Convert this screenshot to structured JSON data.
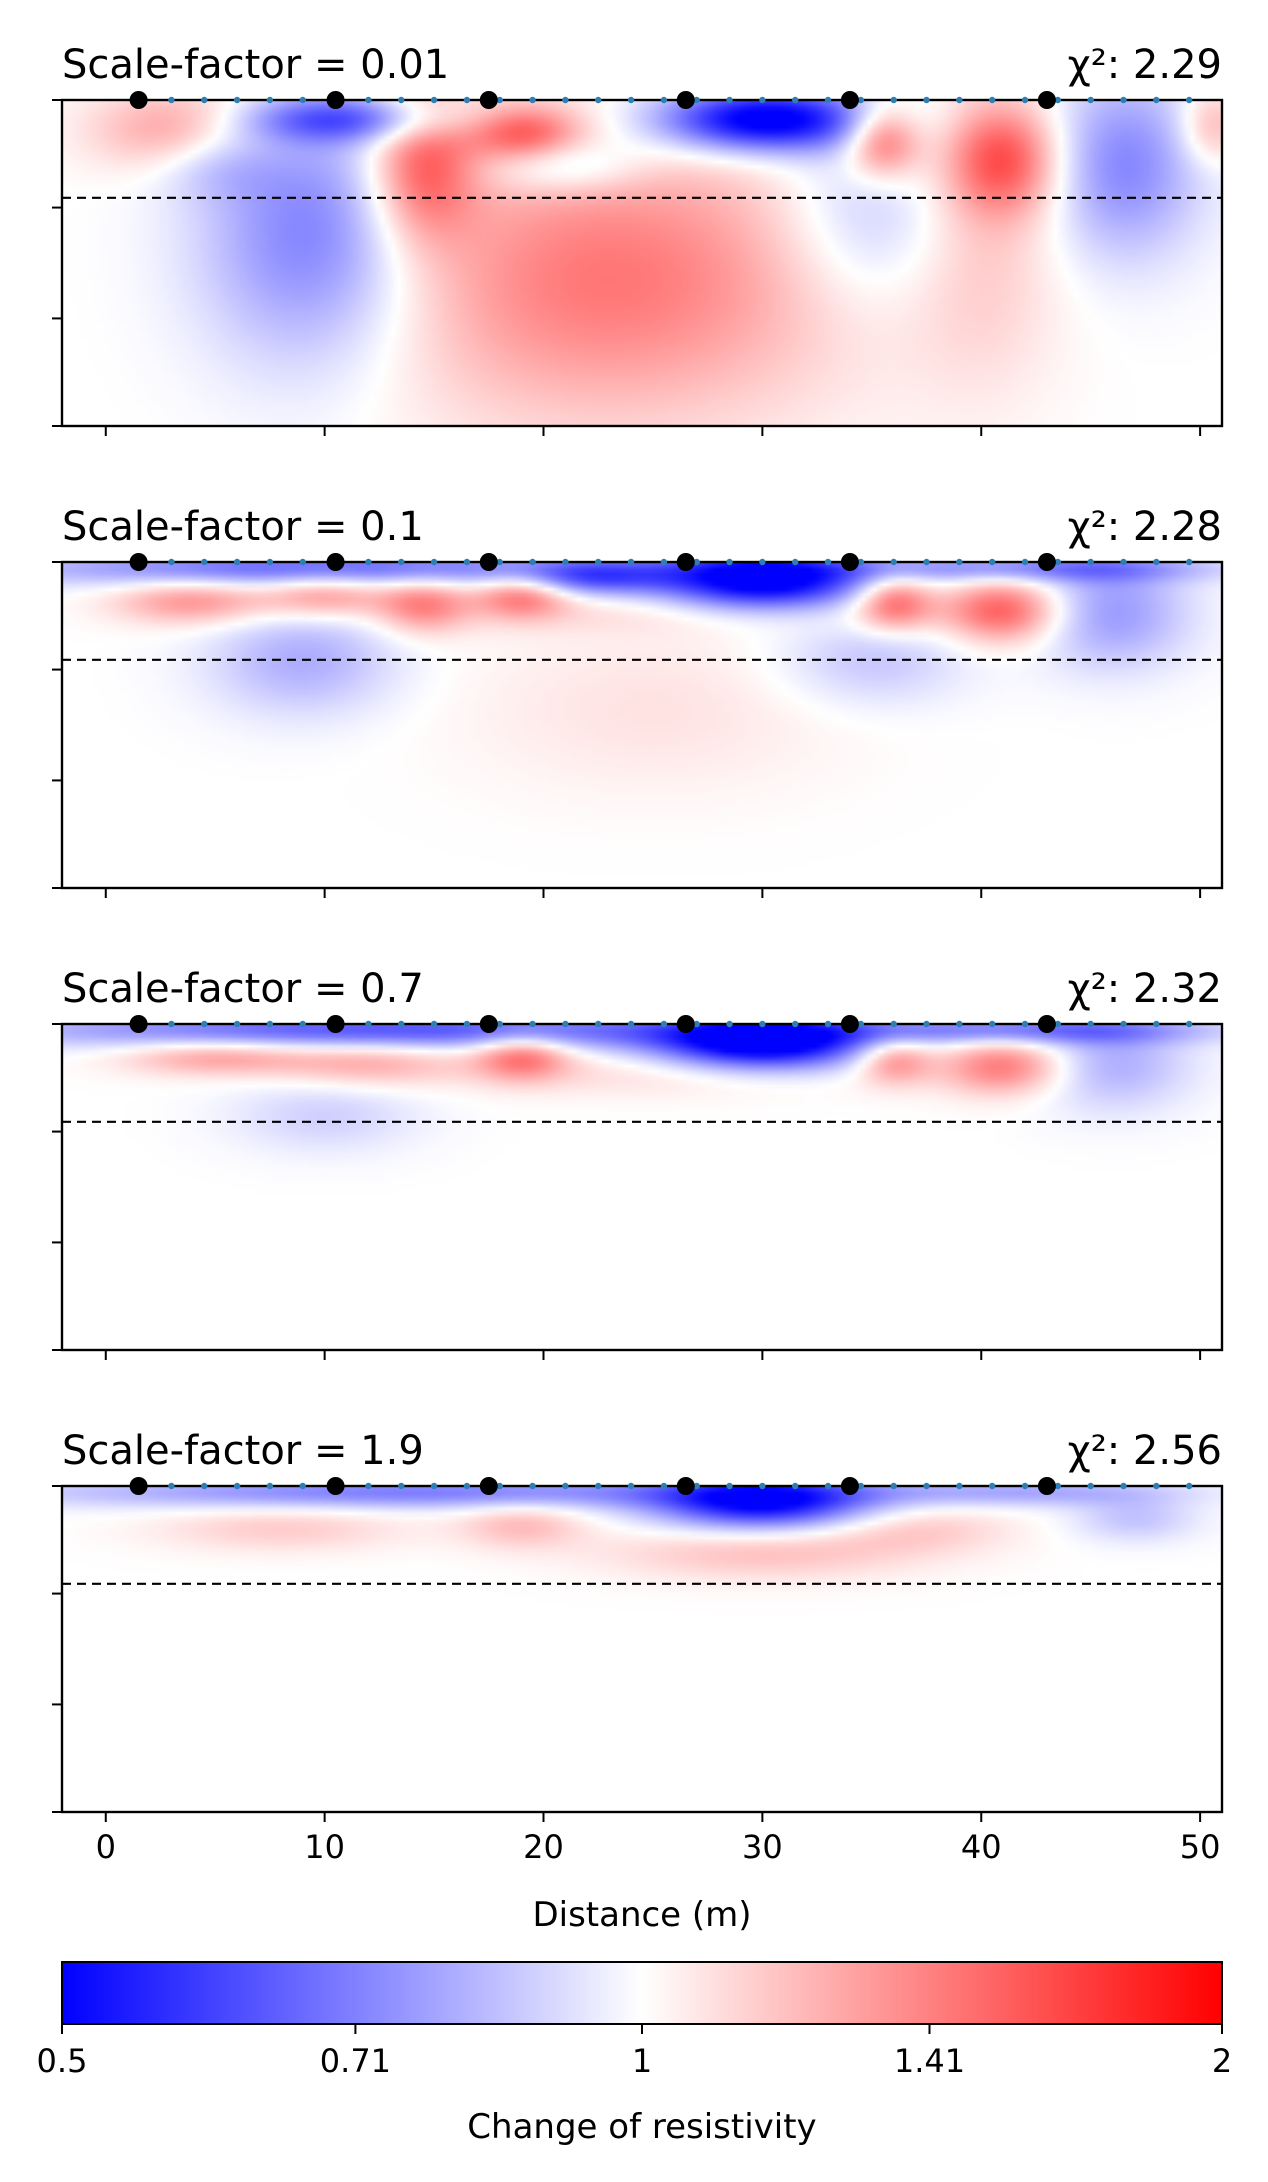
{
  "figure": {
    "xlabel": "Distance (m)",
    "colorbar_label": "Change of resistivity"
  },
  "chart_data": {
    "type": "heatmap",
    "xlabel": "Distance (m)",
    "xlim": [
      -2,
      51
    ],
    "x_ticks": [
      0,
      10,
      20,
      30,
      40,
      50
    ],
    "x_tick_labels": [
      "0",
      "10",
      "20",
      "30",
      "40",
      "50"
    ],
    "y_tick_labels_shown": false,
    "y_tick_count": 4,
    "electrodes_small": [
      1.5,
      3,
      4.5,
      6,
      7.5,
      9,
      10.5,
      12,
      13.5,
      15,
      16.5,
      18,
      19.5,
      21,
      22.5,
      24,
      25.5,
      27,
      28.5,
      30,
      31.5,
      33,
      34.5,
      36,
      37.5,
      39,
      40.5,
      42,
      43.5,
      45,
      46.5,
      48,
      49.5
    ],
    "electrodes_large": [
      1.5,
      10.5,
      17.5,
      26.5,
      34,
      43
    ],
    "colorbar": {
      "label": "Change of resistivity",
      "scale": "log",
      "range": [
        0.5,
        2
      ],
      "ticks": [
        0.5,
        0.71,
        1,
        1.41,
        2
      ],
      "tick_labels": [
        "0.5",
        "0.71",
        "1",
        "1.41",
        "2"
      ],
      "colors": [
        "#0000ff",
        "#ffffff",
        "#ff0000"
      ]
    },
    "panels": [
      {
        "title": "Scale-factor = 0.01",
        "chi2_label": "χ²: 2.29",
        "chi2": 2.29,
        "anomalies": [
          {
            "x": 3.5,
            "depth": 0.09,
            "sx": 2.8,
            "sd": 0.09,
            "v": 1.35
          },
          {
            "x": 9.5,
            "depth": 0.42,
            "sx": 3.6,
            "sd": 0.28,
            "v": 0.68
          },
          {
            "x": 5,
            "depth": 0.18,
            "sx": 2,
            "sd": 0.08,
            "v": 0.85
          },
          {
            "x": 14.5,
            "depth": 0.2,
            "sx": 1.7,
            "sd": 0.16,
            "v": 1.55
          },
          {
            "x": 23,
            "depth": 0.55,
            "sx": 7.5,
            "sd": 0.3,
            "v": 1.45
          },
          {
            "x": 19,
            "depth": 0.1,
            "sx": 1.8,
            "sd": 0.06,
            "v": 1.5
          },
          {
            "x": 21,
            "depth": 0.2,
            "sx": 2.5,
            "sd": 0.06,
            "v": 0.8
          },
          {
            "x": 30,
            "depth": 0.06,
            "sx": 3.5,
            "sd": 0.07,
            "v": 0.45
          },
          {
            "x": 35.5,
            "depth": 0.12,
            "sx": 1.2,
            "sd": 0.08,
            "v": 1.6
          },
          {
            "x": 35,
            "depth": 0.35,
            "sx": 3,
            "sd": 0.2,
            "v": 0.82
          },
          {
            "x": 41,
            "depth": 0.18,
            "sx": 1.8,
            "sd": 0.12,
            "v": 1.55
          },
          {
            "x": 40,
            "depth": 0.45,
            "sx": 2.5,
            "sd": 0.3,
            "v": 1.15
          },
          {
            "x": 46.5,
            "depth": 0.2,
            "sx": 2.5,
            "sd": 0.2,
            "v": 0.72
          },
          {
            "x": 50.5,
            "depth": 0.08,
            "sx": 1,
            "sd": 0.08,
            "v": 1.25
          },
          {
            "x": 12.5,
            "depth": 0.06,
            "sx": 3.5,
            "sd": 0.05,
            "v": 0.78
          },
          {
            "x": 9.5,
            "depth": 0.06,
            "sx": 2.8,
            "sd": 0.05,
            "v": 0.82
          }
        ]
      },
      {
        "title": "Scale-factor = 0.1",
        "chi2_label": "χ²: 2.28",
        "chi2": 2.28,
        "anomalies": [
          {
            "x": 10,
            "depth": 0.02,
            "sx": 10,
            "sd": 0.04,
            "v": 0.65
          },
          {
            "x": 4,
            "depth": 0.12,
            "sx": 2.5,
            "sd": 0.05,
            "v": 1.35
          },
          {
            "x": 10,
            "depth": 0.1,
            "sx": 2,
            "sd": 0.05,
            "v": 1.35
          },
          {
            "x": 14.5,
            "depth": 0.13,
            "sx": 1.5,
            "sd": 0.06,
            "v": 1.4
          },
          {
            "x": 19,
            "depth": 0.1,
            "sx": 1.5,
            "sd": 0.05,
            "v": 1.45
          },
          {
            "x": 9,
            "depth": 0.3,
            "sx": 3,
            "sd": 0.12,
            "v": 0.8
          },
          {
            "x": 22,
            "depth": 0.05,
            "sx": 2.5,
            "sd": 0.04,
            "v": 0.7
          },
          {
            "x": 30,
            "depth": 0.06,
            "sx": 3.5,
            "sd": 0.07,
            "v": 0.45
          },
          {
            "x": 25,
            "depth": 0.45,
            "sx": 6,
            "sd": 0.18,
            "v": 1.08
          },
          {
            "x": 36,
            "depth": 0.12,
            "sx": 1.2,
            "sd": 0.06,
            "v": 1.5
          },
          {
            "x": 41,
            "depth": 0.15,
            "sx": 1.8,
            "sd": 0.07,
            "v": 1.5
          },
          {
            "x": 46,
            "depth": 0.15,
            "sx": 2.5,
            "sd": 0.12,
            "v": 0.75
          },
          {
            "x": 35,
            "depth": 0.3,
            "sx": 3,
            "sd": 0.1,
            "v": 0.85
          },
          {
            "x": 42,
            "depth": 0.02,
            "sx": 6,
            "sd": 0.03,
            "v": 0.72
          },
          {
            "x": 30,
            "depth": 0.15,
            "sx": 8,
            "sd": 0.05,
            "v": 1.15
          }
        ]
      },
      {
        "title": "Scale-factor = 0.7",
        "chi2_label": "χ²: 2.32",
        "chi2": 2.32,
        "anomalies": [
          {
            "x": 13,
            "depth": 0.02,
            "sx": 12,
            "sd": 0.04,
            "v": 0.62
          },
          {
            "x": 5,
            "depth": 0.1,
            "sx": 3,
            "sd": 0.04,
            "v": 1.3
          },
          {
            "x": 12,
            "depth": 0.12,
            "sx": 3,
            "sd": 0.05,
            "v": 1.25
          },
          {
            "x": 19,
            "depth": 0.1,
            "sx": 1.5,
            "sd": 0.05,
            "v": 1.45
          },
          {
            "x": 30,
            "depth": 0.06,
            "sx": 3.5,
            "sd": 0.06,
            "v": 0.45
          },
          {
            "x": 36,
            "depth": 0.11,
            "sx": 1.2,
            "sd": 0.05,
            "v": 1.4
          },
          {
            "x": 41,
            "depth": 0.13,
            "sx": 2,
            "sd": 0.06,
            "v": 1.45
          },
          {
            "x": 46,
            "depth": 0.12,
            "sx": 2.5,
            "sd": 0.1,
            "v": 0.8
          },
          {
            "x": 10,
            "depth": 0.28,
            "sx": 3,
            "sd": 0.08,
            "v": 0.88
          },
          {
            "x": 42,
            "depth": 0.02,
            "sx": 6,
            "sd": 0.03,
            "v": 0.7
          },
          {
            "x": 26,
            "depth": 0.15,
            "sx": 6,
            "sd": 0.05,
            "v": 1.12
          }
        ]
      },
      {
        "title": "Scale-factor = 1.9",
        "chi2_label": "χ²: 2.56",
        "chi2": 2.56,
        "anomalies": [
          {
            "x": 14,
            "depth": 0.02,
            "sx": 12,
            "sd": 0.035,
            "v": 0.7
          },
          {
            "x": 30,
            "depth": 0.05,
            "sx": 3.5,
            "sd": 0.06,
            "v": 0.5
          },
          {
            "x": 8,
            "depth": 0.13,
            "sx": 4,
            "sd": 0.05,
            "v": 1.15
          },
          {
            "x": 19,
            "depth": 0.12,
            "sx": 2,
            "sd": 0.05,
            "v": 1.2
          },
          {
            "x": 30,
            "depth": 0.2,
            "sx": 5,
            "sd": 0.06,
            "v": 1.2
          },
          {
            "x": 37,
            "depth": 0.13,
            "sx": 3,
            "sd": 0.05,
            "v": 1.15
          },
          {
            "x": 42,
            "depth": 0.02,
            "sx": 5,
            "sd": 0.03,
            "v": 0.8
          },
          {
            "x": 47,
            "depth": 0.1,
            "sx": 2,
            "sd": 0.05,
            "v": 0.85
          }
        ]
      }
    ]
  }
}
